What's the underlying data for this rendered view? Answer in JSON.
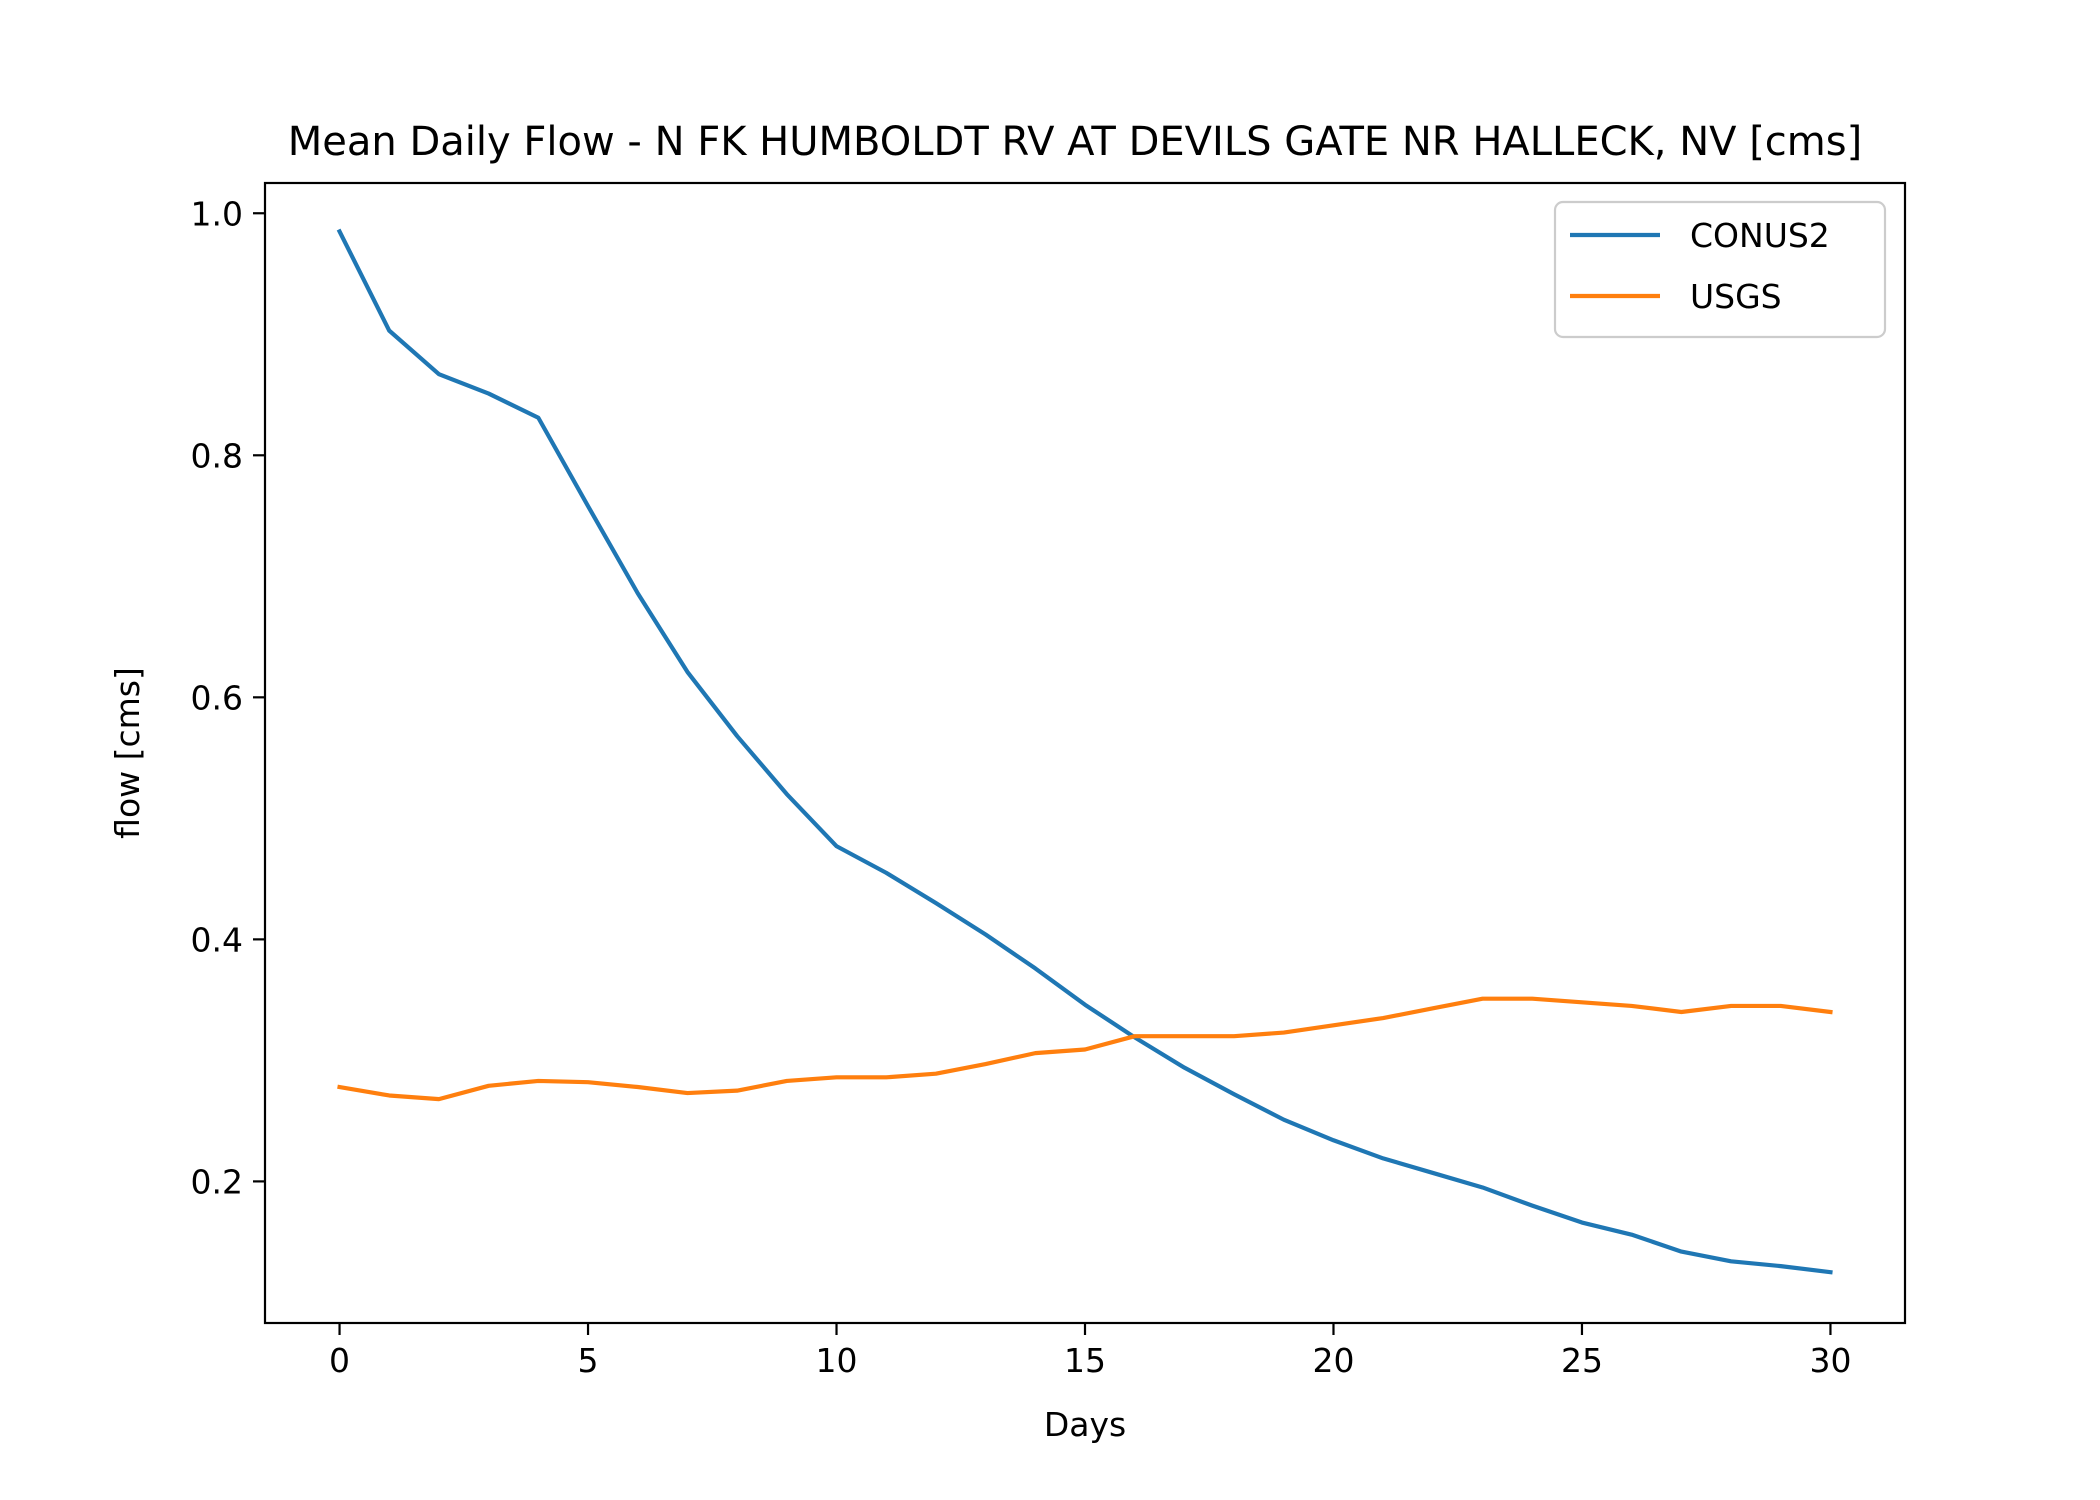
{
  "chart_data": {
    "type": "line",
    "title": "Mean Daily Flow - N FK HUMBOLDT RV AT DEVILS GATE NR HALLECK, NV [cms]",
    "xlabel": "Days",
    "ylabel": "flow [cms]",
    "xlim": [
      -1.5,
      31.5
    ],
    "ylim": [
      0.083,
      1.025
    ],
    "xticks": [
      0,
      5,
      10,
      15,
      20,
      25,
      30
    ],
    "xtick_labels": [
      "0",
      "5",
      "10",
      "15",
      "20",
      "25",
      "30"
    ],
    "yticks": [
      0.2,
      0.4,
      0.6,
      0.8,
      1.0
    ],
    "ytick_labels": [
      "0.2",
      "0.4",
      "0.6",
      "0.8",
      "1.0"
    ],
    "grid": false,
    "legend_position": "top-right",
    "x": [
      0,
      1,
      2,
      3,
      4,
      5,
      6,
      7,
      8,
      9,
      10,
      11,
      12,
      13,
      14,
      15,
      16,
      17,
      18,
      19,
      20,
      21,
      22,
      23,
      24,
      25,
      26,
      27,
      28,
      29,
      30
    ],
    "series": [
      {
        "name": "CONUS2",
        "color": "#1f77b4",
        "values": [
          0.985,
          0.903,
          0.867,
          0.851,
          0.831,
          0.758,
          0.686,
          0.621,
          0.568,
          0.52,
          0.477,
          0.455,
          0.43,
          0.404,
          0.376,
          0.346,
          0.319,
          0.294,
          0.272,
          0.251,
          0.234,
          0.219,
          0.207,
          0.195,
          0.18,
          0.166,
          0.156,
          0.142,
          0.134,
          0.13,
          0.125
        ]
      },
      {
        "name": "USGS",
        "color": "#ff7f0e",
        "values": [
          0.278,
          0.271,
          0.268,
          0.279,
          0.283,
          0.282,
          0.278,
          0.273,
          0.275,
          0.283,
          0.286,
          0.286,
          0.289,
          0.297,
          0.306,
          0.309,
          0.32,
          0.32,
          0.32,
          0.323,
          0.329,
          0.335,
          0.343,
          0.351,
          0.351,
          0.348,
          0.345,
          0.34,
          0.345,
          0.345,
          0.34
        ]
      }
    ]
  }
}
